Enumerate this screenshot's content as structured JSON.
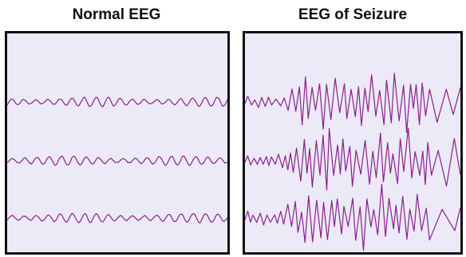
{
  "panels": [
    {
      "id": "normal",
      "title": "Normal EEG",
      "channels": 3,
      "state": "normal"
    },
    {
      "id": "seizure",
      "title": "EEG of Seizure",
      "channels": 3,
      "state": "seizure"
    }
  ],
  "colors": {
    "trace": "#8a1f8f",
    "panel_bg": "#eceaf6",
    "border": "#111111"
  }
}
